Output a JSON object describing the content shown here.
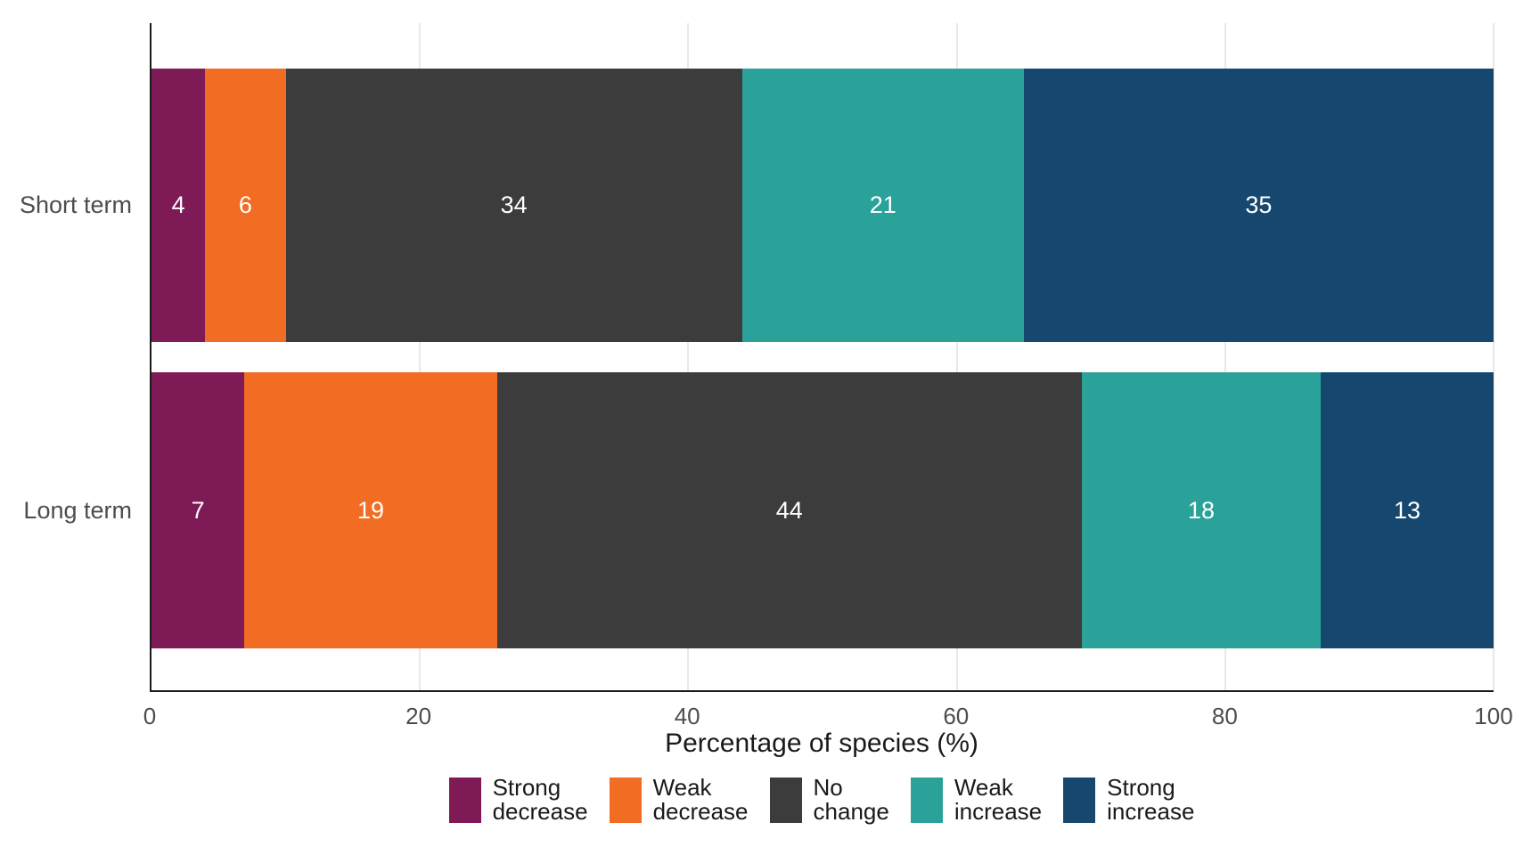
{
  "chart_data": {
    "type": "bar",
    "orientation": "horizontal",
    "stacked": true,
    "title": "",
    "xlabel": "Percentage of species (%)",
    "ylabel": "",
    "xlim": [
      0,
      100
    ],
    "xticks": [
      0,
      20,
      40,
      60,
      80,
      100
    ],
    "grid": "vertical-major-light",
    "legend_position": "bottom",
    "categories": [
      "Short term",
      "Long term"
    ],
    "series": [
      {
        "name": "Strong decrease",
        "color": "#7e1a55",
        "values": [
          4,
          7
        ]
      },
      {
        "name": "Weak decrease",
        "color": "#f26c23",
        "values": [
          6,
          19
        ]
      },
      {
        "name": "No change",
        "color": "#3c3c3c",
        "values": [
          34,
          44
        ]
      },
      {
        "name": "Weak increase",
        "color": "#2aa29a",
        "values": [
          21,
          18
        ]
      },
      {
        "name": "Strong increase",
        "color": "#16486f",
        "values": [
          35,
          13
        ]
      }
    ]
  },
  "axis": {
    "title": "Percentage of species (%)",
    "tick_labels": [
      "0",
      "20",
      "40",
      "60",
      "80",
      "100"
    ]
  },
  "legend": {
    "items": [
      {
        "line1": "Strong",
        "line2": "decrease"
      },
      {
        "line1": "Weak",
        "line2": "decrease"
      },
      {
        "line1": "No",
        "line2": "change"
      },
      {
        "line1": "Weak",
        "line2": "increase"
      },
      {
        "line1": "Strong",
        "line2": "increase"
      }
    ]
  }
}
